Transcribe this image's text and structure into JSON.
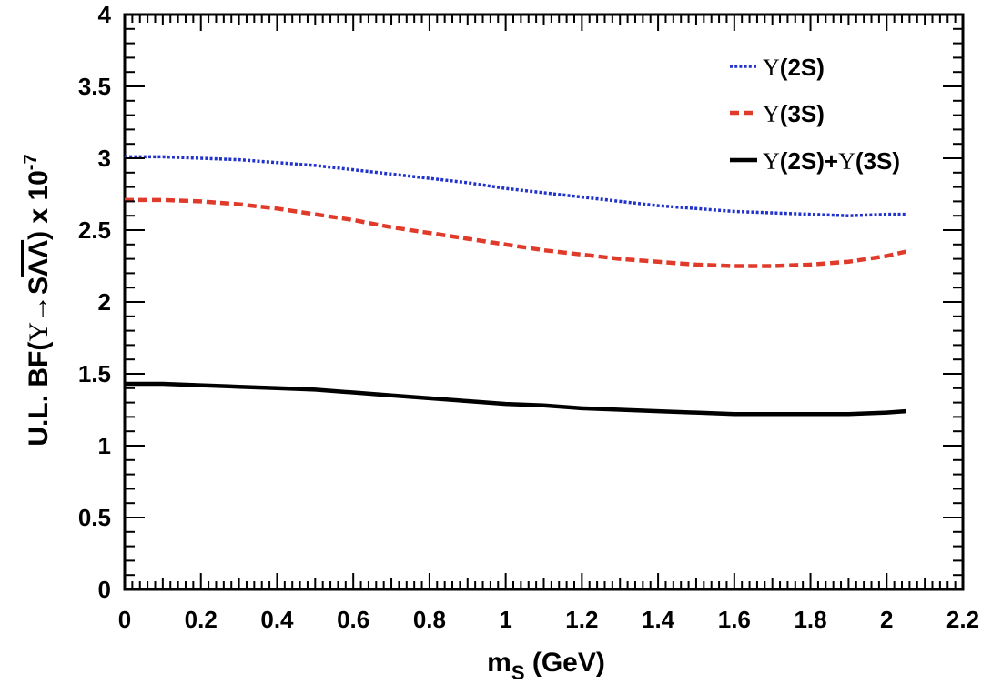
{
  "chart_data": {
    "type": "line",
    "title": "",
    "xlabel_main": "m",
    "xlabel_sub": "S",
    "xlabel_unit": " (GeV)",
    "ylabel_prefix": "U.L.  BF(",
    "ylabel_upsilon": "Υ",
    "ylabel_arrow": "→S",
    "ylabel_lambdas": "ΛΛ",
    "ylabel_suffix": ") x 10",
    "ylabel_exp": "-7",
    "xlim": [
      0,
      2.2
    ],
    "ylim": [
      0,
      4
    ],
    "x_ticks": [
      0,
      0.2,
      0.4,
      0.6,
      0.8,
      1,
      1.2,
      1.4,
      1.6,
      1.8,
      2,
      2.2
    ],
    "x_tick_labels": [
      "0",
      "0.2",
      "0.4",
      "0.6",
      "0.8",
      "1",
      "1.2",
      "1.4",
      "1.6",
      "1.8",
      "2",
      "2.2"
    ],
    "y_ticks": [
      0,
      0.5,
      1,
      1.5,
      2,
      2.5,
      3,
      3.5,
      4
    ],
    "y_tick_labels": [
      "0",
      "0.5",
      "1",
      "1.5",
      "2",
      "2.5",
      "3",
      "3.5",
      "4"
    ],
    "legend_position": "top-right",
    "series": [
      {
        "name": "Υ(2S)",
        "legend_symbol": "Υ",
        "legend_rest": "(2S)",
        "color": "#2233cc",
        "style": "dotted",
        "x": [
          0,
          0.1,
          0.2,
          0.3,
          0.4,
          0.5,
          0.6,
          0.7,
          0.8,
          0.9,
          1.0,
          1.1,
          1.2,
          1.3,
          1.4,
          1.5,
          1.6,
          1.7,
          1.8,
          1.9,
          2.0,
          2.05
        ],
        "values": [
          3.01,
          3.01,
          3.0,
          2.99,
          2.97,
          2.95,
          2.92,
          2.89,
          2.86,
          2.83,
          2.79,
          2.76,
          2.73,
          2.7,
          2.67,
          2.65,
          2.63,
          2.62,
          2.61,
          2.6,
          2.61,
          2.61
        ]
      },
      {
        "name": "Υ(3S)",
        "legend_symbol": "Υ",
        "legend_rest": "(3S)",
        "color": "#e03a2a",
        "style": "dashed",
        "x": [
          0,
          0.1,
          0.2,
          0.3,
          0.4,
          0.5,
          0.6,
          0.7,
          0.8,
          0.9,
          1.0,
          1.1,
          1.2,
          1.3,
          1.4,
          1.5,
          1.6,
          1.7,
          1.8,
          1.9,
          2.0,
          2.05
        ],
        "values": [
          2.71,
          2.71,
          2.7,
          2.68,
          2.65,
          2.61,
          2.57,
          2.52,
          2.48,
          2.44,
          2.4,
          2.36,
          2.33,
          2.3,
          2.28,
          2.26,
          2.25,
          2.25,
          2.26,
          2.28,
          2.32,
          2.35
        ]
      },
      {
        "name": "Υ(2S)+Υ(3S)",
        "legend_symbol": "Υ",
        "legend_mid": "(2S)+",
        "legend_rest": "(3S)",
        "color": "#000000",
        "style": "solid",
        "x": [
          0,
          0.1,
          0.2,
          0.3,
          0.4,
          0.5,
          0.6,
          0.7,
          0.8,
          0.9,
          1.0,
          1.1,
          1.2,
          1.3,
          1.4,
          1.5,
          1.6,
          1.7,
          1.8,
          1.9,
          2.0,
          2.05
        ],
        "values": [
          1.43,
          1.43,
          1.42,
          1.41,
          1.4,
          1.39,
          1.37,
          1.35,
          1.33,
          1.31,
          1.29,
          1.28,
          1.26,
          1.25,
          1.24,
          1.23,
          1.22,
          1.22,
          1.22,
          1.22,
          1.23,
          1.24
        ]
      }
    ]
  }
}
